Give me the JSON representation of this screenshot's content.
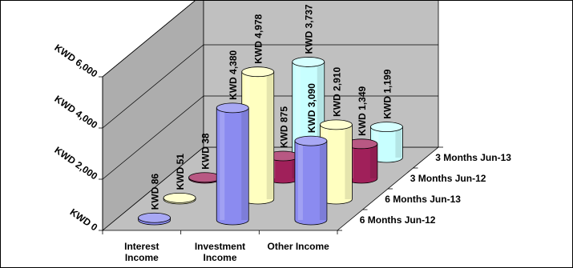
{
  "chart_data": {
    "type": "bar",
    "style": "3d-cylinder",
    "categories": [
      "Interest\nIncome",
      "Investment\nIncome",
      "Other Income"
    ],
    "series": [
      {
        "name": "6 Months Jun-12",
        "values": [
          86,
          4380,
          3090
        ],
        "labels": [
          "KWD 86",
          "KWD 4,380",
          "KWD 3,090"
        ],
        "color": "#8b8bf0"
      },
      {
        "name": "6 Months Jun-13",
        "values": [
          51,
          4978,
          2910
        ],
        "labels": [
          "KWD 51",
          "KWD 4,978",
          "KWD 2,910"
        ],
        "color": "#ffffc0"
      },
      {
        "name": "3 Months Jun-12",
        "values": [
          38,
          875,
          1349
        ],
        "labels": [
          "KWD 38",
          "KWD 875",
          "KWD 1,349"
        ],
        "color": "#a0205a"
      },
      {
        "name": "3 Months Jun-13",
        "values": [
          null,
          3737,
          1199
        ],
        "labels": [
          "",
          "KWD 3,737",
          "KWD 1,199"
        ],
        "color": "#c8ffff"
      }
    ],
    "y_ticks": [
      "KWD 0",
      "KWD 2,000",
      "KWD 4,000",
      "KWD 6,000"
    ],
    "y_tick_values": [
      0,
      2000,
      4000,
      6000
    ],
    "ylim": [
      0,
      6000
    ],
    "grid": true,
    "wall_color": "#c0c0c0",
    "floor_color": "#c0c0c0",
    "title": "",
    "xlabel": "",
    "ylabel": ""
  }
}
